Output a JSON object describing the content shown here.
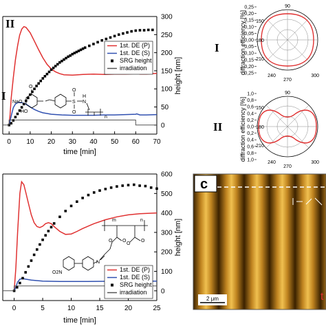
{
  "chart_data": [
    {
      "type": "line",
      "panel": "a",
      "xlabel": "time [min]",
      "ylabel_right": "height [nm]",
      "xlim": [
        -3,
        70
      ],
      "xticks": [
        0,
        10,
        20,
        30,
        40,
        50,
        60,
        70
      ],
      "ylim_right": [
        -25,
        300
      ],
      "yticks_right": [
        0,
        50,
        100,
        150,
        200,
        250,
        300
      ],
      "legend_placement": "right",
      "annotations": [
        "II",
        "I"
      ],
      "chem_labels": [
        "NaO",
        "O",
        "HO",
        "S",
        "O",
        "O",
        "N",
        "H",
        "n"
      ],
      "series": [
        {
          "name": "1st. DE (P)",
          "color": "#e03030",
          "style": "line",
          "points": [
            [
              0,
              0
            ],
            [
              0.5,
              30
            ],
            [
              1,
              75
            ],
            [
              2,
              130
            ],
            [
              3,
              180
            ],
            [
              4,
              218
            ],
            [
              5,
              248
            ],
            [
              6,
              265
            ],
            [
              7,
              272
            ],
            [
              8,
              270
            ],
            [
              10,
              255
            ],
            [
              12,
              232
            ],
            [
              14,
              208
            ],
            [
              16,
              186
            ],
            [
              18,
              168
            ],
            [
              20,
              155
            ],
            [
              22,
              147
            ],
            [
              24,
              142
            ],
            [
              26,
              139
            ],
            [
              30,
              138
            ],
            [
              35,
              140
            ],
            [
              40,
              141
            ],
            [
              45,
              140
            ],
            [
              50,
              141
            ],
            [
              55,
              141
            ],
            [
              60,
              142
            ],
            [
              61,
              143
            ],
            [
              62,
              141
            ],
            [
              65,
              141
            ],
            [
              70,
              143
            ]
          ]
        },
        {
          "name": "1st. DE (S)",
          "color": "#3050b0",
          "style": "line",
          "points": [
            [
              0,
              0
            ],
            [
              1,
              25
            ],
            [
              2,
              48
            ],
            [
              3,
              58
            ],
            [
              4,
              62
            ],
            [
              5,
              63
            ],
            [
              6,
              62
            ],
            [
              8,
              58
            ],
            [
              10,
              50
            ],
            [
              12,
              43
            ],
            [
              14,
              38
            ],
            [
              16,
              34
            ],
            [
              18,
              32
            ],
            [
              20,
              30
            ],
            [
              25,
              28
            ],
            [
              30,
              27
            ],
            [
              35,
              27
            ],
            [
              40,
              27
            ],
            [
              45,
              28
            ],
            [
              50,
              28
            ],
            [
              55,
              29
            ],
            [
              60,
              30
            ],
            [
              60.5,
              31
            ],
            [
              62,
              28
            ],
            [
              65,
              28
            ],
            [
              70,
              29
            ]
          ]
        },
        {
          "name": "SRG height",
          "color": "#000000",
          "style": "markers",
          "points": [
            [
              0,
              0
            ],
            [
              1,
              5
            ],
            [
              2,
              13
            ],
            [
              3,
              22
            ],
            [
              4,
              31
            ],
            [
              5,
              40
            ],
            [
              6,
              49
            ],
            [
              7,
              58
            ],
            [
              8,
              67
            ],
            [
              9,
              75
            ],
            [
              10,
              84
            ],
            [
              11,
              92
            ],
            [
              12,
              100
            ],
            [
              13,
              108
            ],
            [
              14,
              115
            ],
            [
              15,
              122
            ],
            [
              16,
              129
            ],
            [
              17,
              135
            ],
            [
              18,
              141
            ],
            [
              19,
              147
            ],
            [
              20,
              153
            ],
            [
              21,
              158
            ],
            [
              22,
              163
            ],
            [
              23,
              168
            ],
            [
              24,
              173
            ],
            [
              25,
              177
            ],
            [
              26,
              181
            ],
            [
              27,
              185
            ],
            [
              28,
              189
            ],
            [
              29,
              192
            ],
            [
              30,
              196
            ],
            [
              31,
              199
            ],
            [
              32,
              202
            ],
            [
              33,
              205
            ],
            [
              34,
              208
            ],
            [
              35,
              211
            ],
            [
              36,
              214
            ],
            [
              38,
              219
            ],
            [
              40,
              224
            ],
            [
              42,
              229
            ],
            [
              44,
              234
            ],
            [
              46,
              238
            ],
            [
              48,
              242
            ],
            [
              50,
              246
            ],
            [
              52,
              250
            ],
            [
              54,
              253
            ],
            [
              56,
              256
            ],
            [
              58,
              259
            ],
            [
              60,
              261
            ],
            [
              62,
              262
            ],
            [
              64,
              262
            ],
            [
              66,
              263
            ],
            [
              68,
              263
            ]
          ]
        },
        {
          "name": "irradiation",
          "color": "#555555",
          "style": "line",
          "points": [
            [
              -3,
              0
            ],
            [
              0,
              0
            ],
            [
              0,
              14
            ],
            [
              60,
              14
            ],
            [
              60,
              0
            ],
            [
              70,
              0
            ]
          ]
        }
      ]
    },
    {
      "type": "polar",
      "panel": "polar-I",
      "label": "I",
      "ylabel": "diffraction efficiency [%]",
      "radial_ticks": [
        "0,25",
        "0,20",
        "0,15",
        "0,10",
        "0,05",
        "0,00",
        "0,05",
        "0,10",
        "0,15",
        "0,20",
        "0,25"
      ],
      "angle_ticks": [
        "90",
        "150",
        "180",
        "210",
        "240",
        "270",
        "300"
      ],
      "curve": "near-circular"
    },
    {
      "type": "polar",
      "panel": "polar-II",
      "label": "II",
      "ylabel": "diffraction efficiency [%]",
      "radial_ticks": [
        "1,0",
        "0,8",
        "0,6",
        "0,4",
        "0,2",
        "0,0",
        "0,2",
        "0,4",
        "0,6",
        "0,8",
        "1,0"
      ],
      "angle_ticks": [
        "90",
        "150",
        "180",
        "210",
        "240",
        "270",
        "300"
      ],
      "curve": "peanut-shaped"
    },
    {
      "type": "line",
      "panel": "b",
      "xlabel": "time [min]",
      "ylabel_right": "height [nm]",
      "xlim": [
        -2,
        25
      ],
      "xticks": [
        0,
        5,
        10,
        15,
        20,
        25
      ],
      "ylim_right": [
        -50,
        600
      ],
      "yticks_right": [
        0,
        100,
        200,
        300,
        400,
        500,
        600
      ],
      "legend_placement": "bottom-right",
      "chem_labels": [
        "m",
        "n",
        "O",
        "O",
        "O",
        "O",
        "N",
        "O2N"
      ],
      "series": [
        {
          "name": "1st. DE (P)",
          "color": "#e03030",
          "style": "line",
          "points": [
            [
              0,
              0
            ],
            [
              0.3,
              120
            ],
            [
              0.6,
              300
            ],
            [
              1,
              500
            ],
            [
              1.3,
              560
            ],
            [
              1.7,
              545
            ],
            [
              2,
              510
            ],
            [
              2.5,
              450
            ],
            [
              3,
              390
            ],
            [
              3.5,
              350
            ],
            [
              4,
              330
            ],
            [
              4.5,
              325
            ],
            [
              5,
              332
            ],
            [
              5.5,
              345
            ],
            [
              6,
              350
            ],
            [
              6.5,
              345
            ],
            [
              7,
              330
            ],
            [
              8,
              305
            ],
            [
              9,
              290
            ],
            [
              10,
              292
            ],
            [
              11,
              305
            ],
            [
              12,
              320
            ],
            [
              14,
              345
            ],
            [
              16,
              365
            ],
            [
              18,
              380
            ],
            [
              20,
              390
            ],
            [
              22,
              396
            ],
            [
              25,
              400
            ]
          ]
        },
        {
          "name": "1st. DE (S)",
          "color": "#3050b0",
          "style": "line",
          "points": [
            [
              0,
              0
            ],
            [
              0.3,
              20
            ],
            [
              0.6,
              45
            ],
            [
              1,
              60
            ],
            [
              1.5,
              63
            ],
            [
              2,
              60
            ],
            [
              3,
              55
            ],
            [
              5,
              50
            ],
            [
              8,
              48
            ],
            [
              12,
              48
            ],
            [
              16,
              49
            ],
            [
              20,
              50
            ],
            [
              25,
              50
            ]
          ]
        },
        {
          "name": "SRG height",
          "color": "#000000",
          "style": "markers",
          "points": [
            [
              0,
              0
            ],
            [
              0.5,
              18
            ],
            [
              1,
              40
            ],
            [
              1.5,
              65
            ],
            [
              2,
              95
            ],
            [
              2.5,
              125
            ],
            [
              3,
              155
            ],
            [
              3.5,
              185
            ],
            [
              4,
              212
            ],
            [
              4.5,
              238
            ],
            [
              5,
              262
            ],
            [
              5.5,
              285
            ],
            [
              6,
              307
            ],
            [
              6.5,
              327
            ],
            [
              7,
              346
            ],
            [
              8,
              380
            ],
            [
              9,
              410
            ],
            [
              10,
              436
            ],
            [
              11,
              458
            ],
            [
              12,
              477
            ],
            [
              13,
              492
            ],
            [
              14,
              505
            ],
            [
              15,
              515
            ],
            [
              16,
              523
            ],
            [
              17,
              530
            ],
            [
              18,
              536
            ],
            [
              19,
              540
            ],
            [
              20,
              543
            ],
            [
              21,
              545
            ],
            [
              22,
              540
            ],
            [
              23,
              538
            ],
            [
              24,
              530
            ],
            [
              25,
              525
            ]
          ]
        },
        {
          "name": "irradiation",
          "color": "#555555",
          "style": "line",
          "points": [
            [
              -2,
              0
            ],
            [
              0,
              0
            ],
            [
              0,
              25
            ],
            [
              25,
              25
            ]
          ]
        }
      ]
    },
    {
      "type": "image",
      "panel": "c",
      "label": "c",
      "scalebar": "2 μm",
      "corner_text": "t",
      "description_visible": "AFM height map with vertical stripes and dashed line"
    }
  ],
  "colors": {
    "p_curve": "#e03030",
    "s_curve": "#3050b0",
    "srg": "#000000",
    "irradiation": "#555555",
    "afm_dark": "#3b2200",
    "afm_light": "#f0c050"
  }
}
